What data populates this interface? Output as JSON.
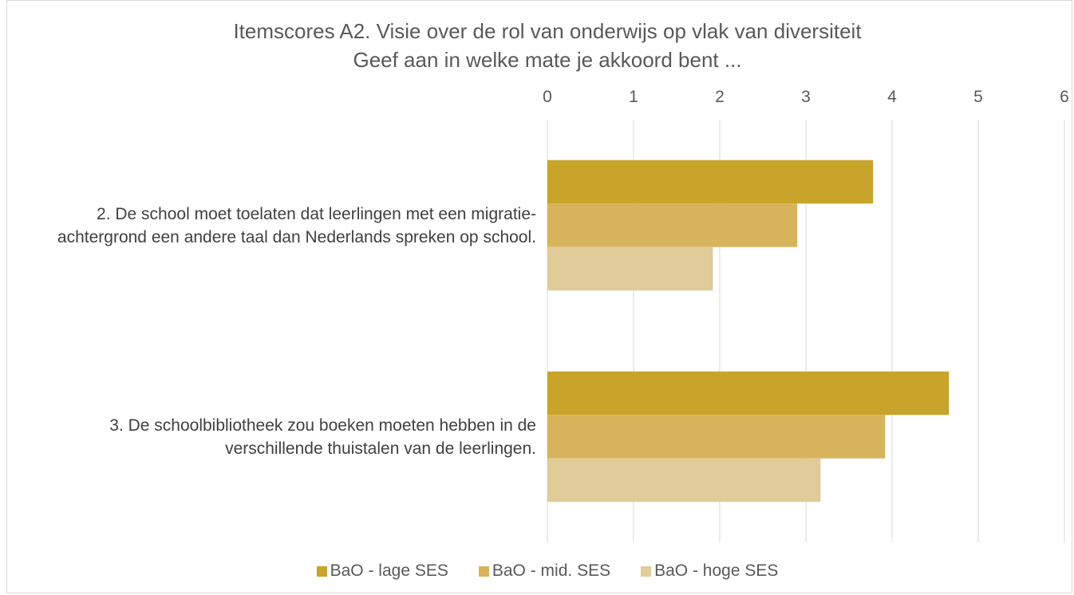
{
  "chart_data": {
    "type": "bar",
    "orientation": "horizontal",
    "title": "Itemscores A2. Visie over de rol van onderwijs op vlak van diversiteit",
    "subtitle": "Geef aan in welke mate je akkoord bent ...",
    "categories": [
      "2. De school moet toelaten dat leerlingen met een migratie-achtergrond een andere taal dan Nederlands spreken op school.",
      "3. De schoolbibliotheek zou boeken moeten hebben in de verschillende thuistalen van de leerlingen."
    ],
    "series": [
      {
        "name": "BaO - lage SES",
        "color": "#c9a42a",
        "values": [
          3.78,
          4.66
        ]
      },
      {
        "name": "BaO - mid. SES",
        "color": "#d7b45c",
        "values": [
          2.9,
          3.92
        ]
      },
      {
        "name": "BaO - hoge SES",
        "color": "#e0cb99",
        "values": [
          1.92,
          3.17
        ]
      }
    ],
    "xlim": [
      0,
      6
    ],
    "xticks": [
      0,
      1,
      2,
      3,
      4,
      5,
      6
    ],
    "grid": true,
    "legend": "bottom"
  }
}
